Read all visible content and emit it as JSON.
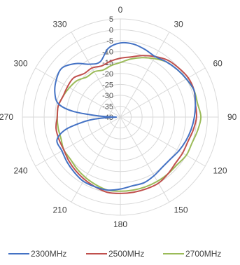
{
  "chart_data": {
    "type": "radar",
    "angle_unit": "deg",
    "angle_ticks": [
      "0",
      "30",
      "60",
      "90",
      "120",
      "150",
      "180",
      "210",
      "240",
      "270",
      "300",
      "330"
    ],
    "radial_ticks": [
      "5",
      "0",
      "-5",
      "-10",
      "-15",
      "-20",
      "-25",
      "-30",
      "-35",
      "-40"
    ],
    "rlim": [
      -40,
      5
    ],
    "grid": true,
    "legend_position": "bottom",
    "series": [
      {
        "name": "2300MHz",
        "color": "#4472C4",
        "points": [
          [
            0,
            -6
          ],
          [
            10,
            -6
          ],
          [
            20,
            -7
          ],
          [
            30,
            -8
          ],
          [
            40,
            -7
          ],
          [
            50,
            -6
          ],
          [
            60,
            -5
          ],
          [
            70,
            -4
          ],
          [
            80,
            -5
          ],
          [
            90,
            -6
          ],
          [
            100,
            -7
          ],
          [
            110,
            -8
          ],
          [
            120,
            -9
          ],
          [
            130,
            -10
          ],
          [
            140,
            -10
          ],
          [
            150,
            -9
          ],
          [
            160,
            -8
          ],
          [
            170,
            -8
          ],
          [
            180,
            -7
          ],
          [
            190,
            -6
          ],
          [
            200,
            -6
          ],
          [
            210,
            -6
          ],
          [
            220,
            -7
          ],
          [
            230,
            -8
          ],
          [
            240,
            -9
          ],
          [
            250,
            -9
          ],
          [
            257,
            -14
          ],
          [
            262,
            -22
          ],
          [
            265,
            -27
          ],
          [
            268,
            -34
          ],
          [
            270,
            -38
          ],
          [
            273,
            -30
          ],
          [
            277,
            -18
          ],
          [
            282,
            -11
          ],
          [
            290,
            -8
          ],
          [
            300,
            -6
          ],
          [
            310,
            -5
          ],
          [
            320,
            -8
          ],
          [
            330,
            -12
          ],
          [
            340,
            -13
          ],
          [
            350,
            -8
          ]
        ]
      },
      {
        "name": "2500MHz",
        "color": "#C0504D",
        "points": [
          [
            0,
            -13
          ],
          [
            10,
            -12
          ],
          [
            20,
            -10
          ],
          [
            30,
            -8
          ],
          [
            40,
            -6
          ],
          [
            50,
            -5
          ],
          [
            60,
            -4
          ],
          [
            70,
            -4
          ],
          [
            80,
            -5
          ],
          [
            90,
            -5
          ],
          [
            100,
            -6
          ],
          [
            110,
            -7
          ],
          [
            120,
            -7
          ],
          [
            130,
            -7
          ],
          [
            140,
            -6
          ],
          [
            150,
            -5
          ],
          [
            160,
            -5
          ],
          [
            170,
            -5
          ],
          [
            180,
            -5
          ],
          [
            190,
            -5
          ],
          [
            200,
            -6
          ],
          [
            210,
            -7
          ],
          [
            220,
            -8
          ],
          [
            230,
            -9
          ],
          [
            240,
            -10
          ],
          [
            250,
            -10
          ],
          [
            260,
            -10
          ],
          [
            270,
            -11
          ],
          [
            280,
            -11
          ],
          [
            290,
            -12
          ],
          [
            300,
            -12
          ],
          [
            310,
            -12
          ],
          [
            320,
            -14
          ],
          [
            330,
            -14
          ],
          [
            340,
            -15
          ],
          [
            350,
            -14
          ]
        ]
      },
      {
        "name": "2700MHz",
        "color": "#9BBB59",
        "points": [
          [
            0,
            -15
          ],
          [
            10,
            -13
          ],
          [
            20,
            -11
          ],
          [
            30,
            -9
          ],
          [
            40,
            -7
          ],
          [
            50,
            -6
          ],
          [
            60,
            -5
          ],
          [
            70,
            -4
          ],
          [
            80,
            -4
          ],
          [
            90,
            -3
          ],
          [
            100,
            -4
          ],
          [
            110,
            -5
          ],
          [
            120,
            -5
          ],
          [
            130,
            -6
          ],
          [
            140,
            -6
          ],
          [
            150,
            -6
          ],
          [
            160,
            -6
          ],
          [
            170,
            -6
          ],
          [
            180,
            -6
          ],
          [
            190,
            -6
          ],
          [
            200,
            -7
          ],
          [
            210,
            -8
          ],
          [
            220,
            -9
          ],
          [
            230,
            -10
          ],
          [
            240,
            -10
          ],
          [
            250,
            -11
          ],
          [
            260,
            -11
          ],
          [
            270,
            -11
          ],
          [
            280,
            -11
          ],
          [
            290,
            -12
          ],
          [
            300,
            -13
          ],
          [
            310,
            -14
          ],
          [
            320,
            -16
          ],
          [
            330,
            -16
          ],
          [
            340,
            -17
          ],
          [
            350,
            -16
          ]
        ]
      }
    ]
  }
}
